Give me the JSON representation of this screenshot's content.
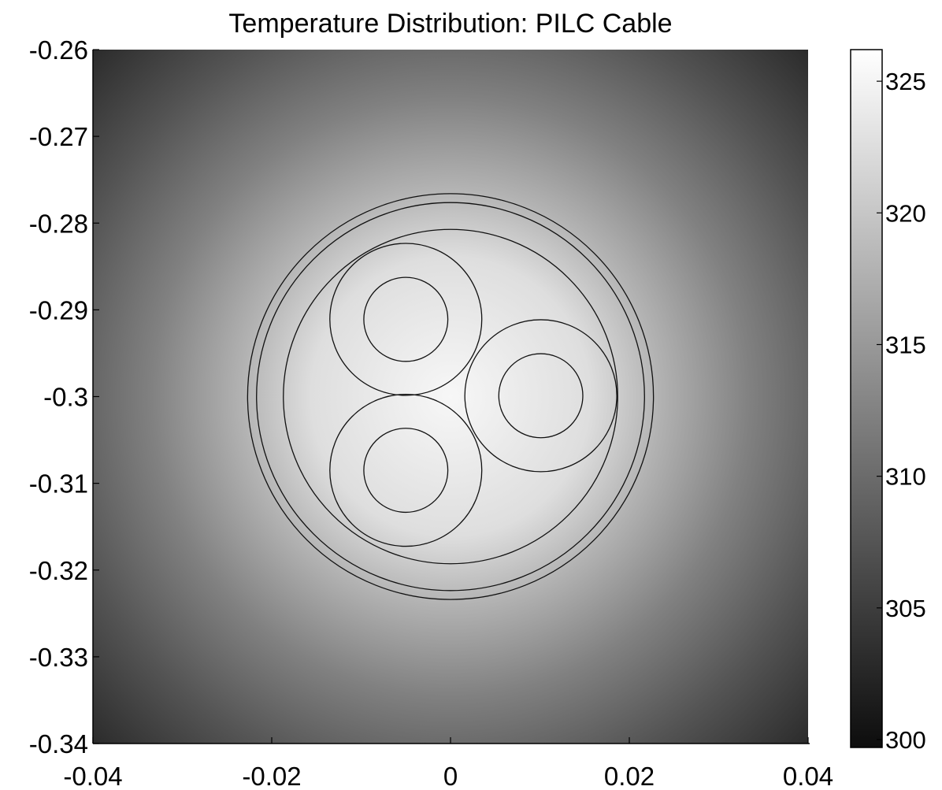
{
  "chart_data": {
    "type": "heatmap",
    "title": "Temperature Distribution: PILC Cable",
    "xlabel": "",
    "ylabel": "",
    "xlim": [
      -0.04,
      0.04
    ],
    "ylim": [
      -0.34,
      -0.26
    ],
    "x_ticks": [
      {
        "value": -0.04,
        "label": "-0.04"
      },
      {
        "value": -0.02,
        "label": "-0.02"
      },
      {
        "value": 0,
        "label": "0"
      },
      {
        "value": 0.02,
        "label": "0.02"
      },
      {
        "value": 0.04,
        "label": "0.04"
      }
    ],
    "y_ticks": [
      {
        "value": -0.26,
        "label": "-0.26"
      },
      {
        "value": -0.27,
        "label": "-0.27"
      },
      {
        "value": -0.28,
        "label": "-0.28"
      },
      {
        "value": -0.29,
        "label": "-0.29"
      },
      {
        "value": -0.3,
        "label": "-0.3"
      },
      {
        "value": -0.31,
        "label": "-0.31"
      },
      {
        "value": -0.32,
        "label": "-0.32"
      },
      {
        "value": -0.33,
        "label": "-0.33"
      },
      {
        "value": -0.34,
        "label": "-0.34"
      }
    ],
    "colormap": "gray",
    "colorbar": {
      "min": 299.7,
      "max": 326.2,
      "ticks": [
        {
          "value": 300,
          "label": "300"
        },
        {
          "value": 305,
          "label": "305"
        },
        {
          "value": 310,
          "label": "310"
        },
        {
          "value": 315,
          "label": "315"
        },
        {
          "value": 320,
          "label": "320"
        },
        {
          "value": 325,
          "label": "325"
        }
      ]
    },
    "field": {
      "center": [
        0,
        -0.3
      ],
      "hot_temperature": 325.3,
      "corner_temperature": 303.0
    },
    "geometry_circles": [
      {
        "name": "outer-sheath",
        "cx": 0,
        "cy": -0.3,
        "r": 0.0227
      },
      {
        "name": "sheath-inner",
        "cx": 0,
        "cy": -0.3,
        "r": 0.0217
      },
      {
        "name": "belt-insulation",
        "cx": 0,
        "cy": -0.3,
        "r": 0.0187
      },
      {
        "name": "core-1-insulation",
        "cx": -0.005,
        "cy": -0.2911,
        "r": 0.0085
      },
      {
        "name": "core-1-conductor",
        "cx": -0.005,
        "cy": -0.2911,
        "r": 0.0047
      },
      {
        "name": "core-2-insulation",
        "cx": 0.0101,
        "cy": -0.2999,
        "r": 0.0085
      },
      {
        "name": "core-2-conductor",
        "cx": 0.0101,
        "cy": -0.2999,
        "r": 0.0047
      },
      {
        "name": "core-3-insulation",
        "cx": -0.005,
        "cy": -0.3085,
        "r": 0.0085
      },
      {
        "name": "core-3-conductor",
        "cx": -0.005,
        "cy": -0.3085,
        "r": 0.0047
      }
    ]
  }
}
